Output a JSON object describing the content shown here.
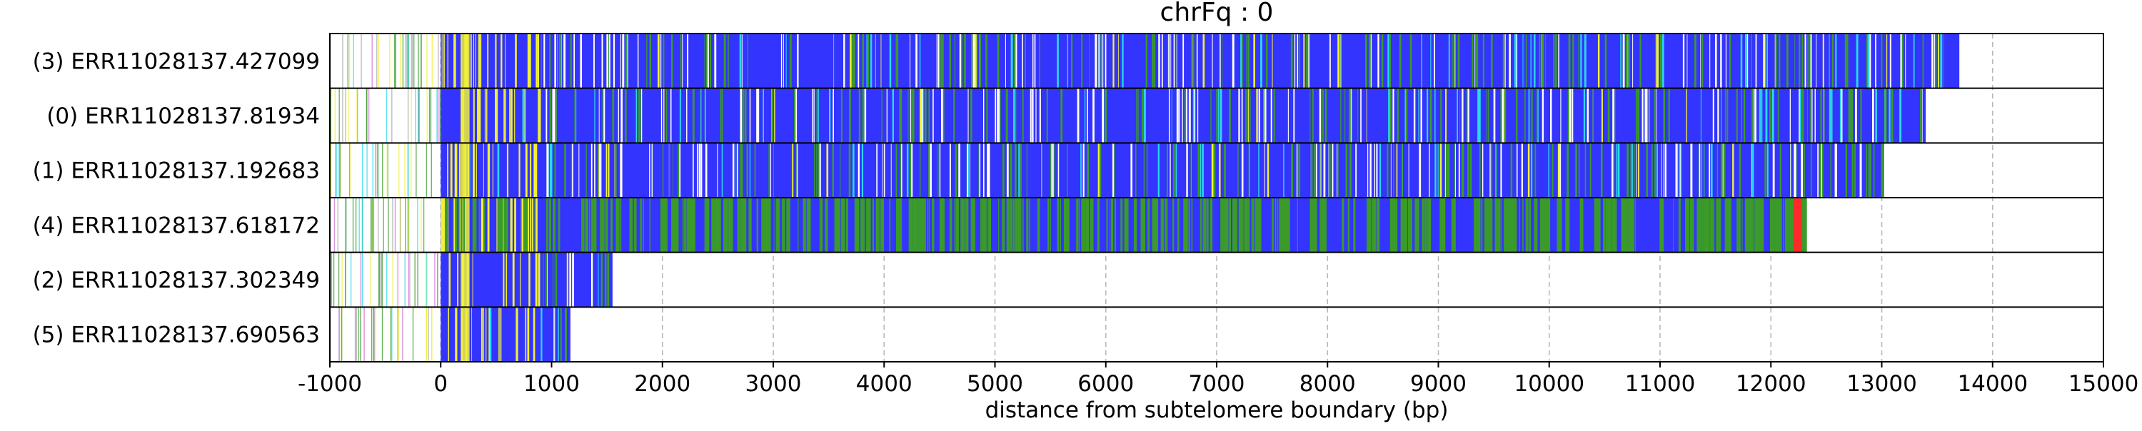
{
  "chart_data": {
    "type": "bar",
    "title": "chrFq : 0",
    "xlabel": "distance from subtelomere boundary (bp)",
    "ylabel": "",
    "xlim": [
      -1000,
      15000
    ],
    "xticks": [
      -1000,
      0,
      1000,
      2000,
      3000,
      4000,
      5000,
      6000,
      7000,
      8000,
      9000,
      10000,
      11000,
      12000,
      13000,
      14000,
      15000
    ],
    "xtick_labels": [
      "-1000",
      "0",
      "1000",
      "2000",
      "3000",
      "4000",
      "5000",
      "6000",
      "7000",
      "8000",
      "9000",
      "10000",
      "11000",
      "12000",
      "13000",
      "14000",
      "15000"
    ],
    "grid": "vertical dashed at x ticks",
    "reads": [
      {
        "label": "(3) ERR11028137.427099",
        "start": -1000,
        "end": 13700,
        "dominant": "blue"
      },
      {
        "label": "(0) ERR11028137.81934",
        "start": -1000,
        "end": 13400,
        "dominant": "blue"
      },
      {
        "label": "(1) ERR11028137.192683",
        "start": -1000,
        "end": 13020,
        "dominant": "blue"
      },
      {
        "label": "(4) ERR11028137.618172",
        "start": -1000,
        "end": 12300,
        "dominant": "blue"
      },
      {
        "label": "(2) ERR11028137.302349",
        "start": -1000,
        "end": 1550,
        "dominant": "blue"
      },
      {
        "label": "(5) ERR11028137.690563",
        "start": -1000,
        "end": 1170,
        "dominant": "blue"
      }
    ],
    "colors": {
      "blue": "#3434ff",
      "green": "#3a9a2a",
      "yellow": "#f0f03a",
      "white": "#ffffff",
      "red": "#ff2a2a",
      "cyan": "#2ad8e8",
      "magenta": "#d070d0",
      "gray": "#a8a8a8"
    }
  }
}
